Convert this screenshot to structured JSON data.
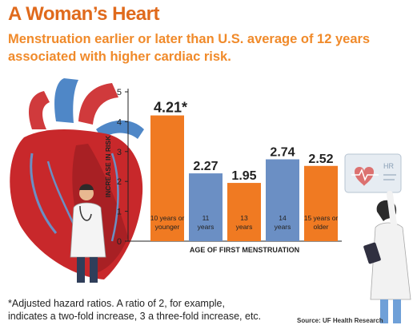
{
  "header": {
    "title": "A Woman’s Heart",
    "subtitle": "Menstruation earlier or later than U.S. average of 12 years associated with higher cardiac risk."
  },
  "chart_data": {
    "type": "bar",
    "categories": [
      "10 years or younger",
      "11 years",
      "13 years",
      "14 years",
      "15 years or older"
    ],
    "category_lines": [
      [
        "10 years or",
        "younger"
      ],
      [
        "11",
        "years"
      ],
      [
        "13",
        "years"
      ],
      [
        "14",
        "years"
      ],
      [
        "15 years or",
        "older"
      ]
    ],
    "values": [
      4.21,
      2.27,
      1.95,
      2.74,
      2.52
    ],
    "data_labels": [
      "4.21*",
      "2.27",
      "1.95",
      "2.74",
      "2.52"
    ],
    "bar_colors": [
      "#f07a22",
      "#6b8fc4",
      "#f07a22",
      "#6b8fc4",
      "#f07a22"
    ],
    "xlabel": "AGE OF FIRST MENSTRUATION",
    "ylabel": "INCREASE IN RISK",
    "ylim": [
      0,
      5
    ],
    "yticks": [
      0,
      1,
      2,
      3,
      4,
      5
    ],
    "grid": false
  },
  "footnote": "*Adjusted hazard ratios. A ratio of 2, for example, indicates a two-fold increase, 3 a three-fold increase, etc.",
  "source": "Source: UF Health Research",
  "illustration": {
    "monitor_label": "HR",
    "colors": {
      "heart": "#c8282b",
      "heart_dark": "#8e1a1d",
      "vessel": "#4f87c7"
    }
  }
}
